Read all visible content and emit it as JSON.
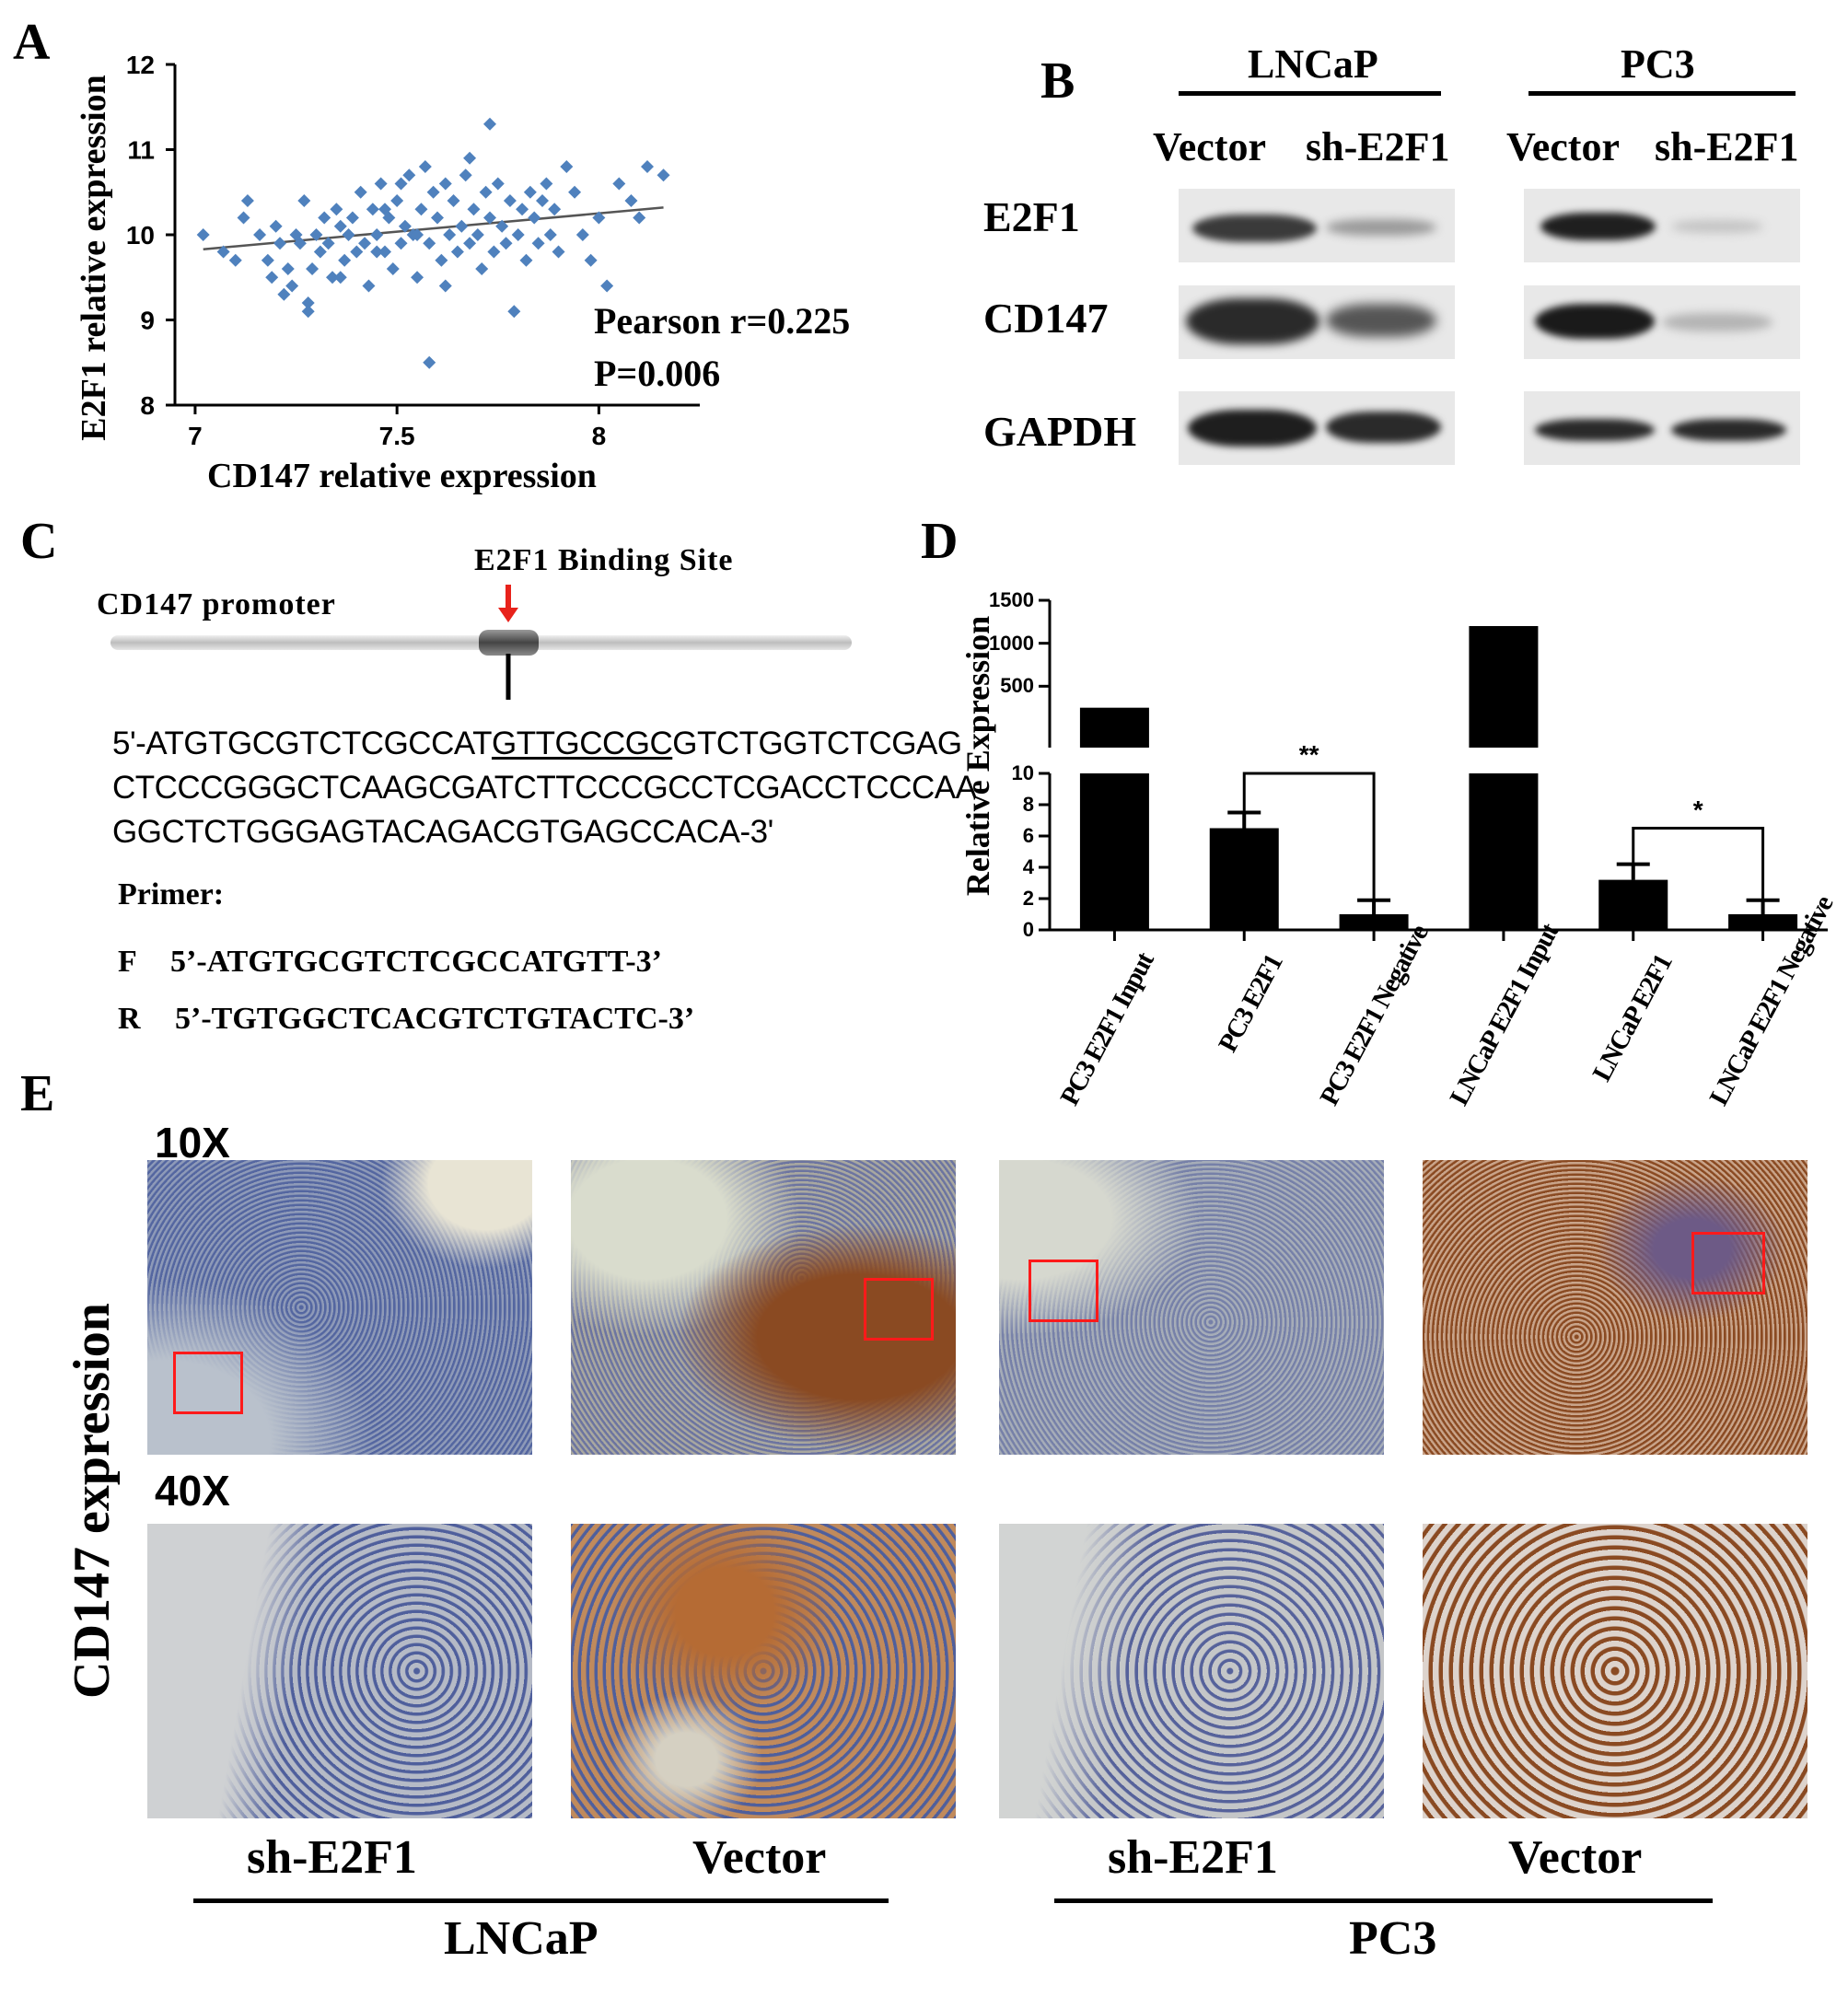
{
  "panels": {
    "A": "A",
    "B": "B",
    "C": "C",
    "D": "D",
    "E": "E"
  },
  "panel_a": {
    "ylabel": "E2F1 relative expression",
    "xlabel": "CD147 relative expression",
    "stat_r": "Pearson r=0.225",
    "stat_p": "P=0.006",
    "xticks": [
      "7",
      "7.5",
      "8"
    ],
    "yticks": [
      "8",
      "9",
      "10",
      "11",
      "12"
    ]
  },
  "panel_b": {
    "groups": [
      "LNCaP",
      "PC3"
    ],
    "columns": [
      "Vector",
      "sh-E2F1",
      "Vector",
      "sh-E2F1"
    ],
    "rows": [
      "E2F1",
      "CD147",
      "GAPDH"
    ]
  },
  "panel_c": {
    "promoter_label": "CD147 promoter",
    "binding_label": "E2F1 Binding Site",
    "seq_line1_a": "5'-ATGTGCGTCTCGCCAT",
    "seq_line1_b": "GTTGCCGC",
    "seq_line1_c": "GTCTGGTCTCGAG",
    "seq_line2": "CTCCCGGGCTCAAGCGATCTTCCCGCCTCGACCTCCCAA",
    "seq_line3": "GGCTCTGGGAGTACAGACGTGAGCCACA-3'",
    "primer_title": "Primer:",
    "primer_f_tag": "F",
    "primer_f_seq": "5’-ATGTGCGTCTCGCCATGTT-3’",
    "primer_r_tag": "R",
    "primer_r_seq": "5’-TGTGGCTCACGTCTGTACTC-3’"
  },
  "panel_d": {
    "ylabel": "Relative Expression",
    "yticks_upper": [
      "500",
      "1000",
      "1500"
    ],
    "yticks_lower": [
      "0",
      "2",
      "4",
      "6",
      "8",
      "10"
    ],
    "sig_1": "**",
    "sig_2": "*"
  },
  "panel_e": {
    "ylabel": "CD147 expression",
    "mag_low": "10X",
    "mag_high": "40X",
    "columns": [
      "sh-E2F1",
      "Vector",
      "sh-E2F1",
      "Vector"
    ],
    "groups": [
      "LNCaP",
      "PC3"
    ]
  },
  "colors": {
    "scatter_point": "#4f81bd",
    "bar": "#000000",
    "roi_box": "#ff1a1a",
    "binding_arrow": "#e8221b",
    "stain_brown": "#8a4a22",
    "stain_blue": "#5468a0"
  },
  "chart_data": [
    {
      "type": "scatter",
      "title": "",
      "xlabel": "CD147 relative expression",
      "ylabel": "E2F1 relative expression",
      "xlim": [
        6.95,
        8.25
      ],
      "ylim": [
        8,
        12
      ],
      "annotations": [
        "Pearson r=0.225",
        "P=0.006"
      ],
      "trendline": [
        [
          7.02,
          9.83
        ],
        [
          8.16,
          10.32
        ]
      ],
      "points": [
        [
          7.02,
          10.0
        ],
        [
          7.07,
          9.8
        ],
        [
          7.1,
          9.7
        ],
        [
          7.12,
          10.2
        ],
        [
          7.13,
          10.4
        ],
        [
          7.16,
          10.0
        ],
        [
          7.18,
          9.7
        ],
        [
          7.19,
          9.5
        ],
        [
          7.2,
          10.1
        ],
        [
          7.21,
          9.9
        ],
        [
          7.22,
          9.3
        ],
        [
          7.23,
          9.6
        ],
        [
          7.24,
          9.4
        ],
        [
          7.25,
          10.0
        ],
        [
          7.26,
          9.9
        ],
        [
          7.27,
          10.4
        ],
        [
          7.28,
          9.2
        ],
        [
          7.29,
          9.6
        ],
        [
          7.3,
          10.0
        ],
        [
          7.31,
          9.8
        ],
        [
          7.32,
          10.2
        ],
        [
          7.33,
          9.9
        ],
        [
          7.34,
          9.5
        ],
        [
          7.35,
          10.3
        ],
        [
          7.36,
          10.1
        ],
        [
          7.37,
          9.7
        ],
        [
          7.38,
          10.0
        ],
        [
          7.39,
          10.2
        ],
        [
          7.4,
          9.8
        ],
        [
          7.41,
          10.5
        ],
        [
          7.42,
          9.9
        ],
        [
          7.43,
          9.4
        ],
        [
          7.44,
          10.3
        ],
        [
          7.45,
          10.0
        ],
        [
          7.46,
          10.6
        ],
        [
          7.47,
          9.8
        ],
        [
          7.48,
          10.2
        ],
        [
          7.49,
          9.6
        ],
        [
          7.5,
          10.4
        ],
        [
          7.51,
          9.9
        ],
        [
          7.52,
          10.1
        ],
        [
          7.53,
          10.7
        ],
        [
          7.54,
          10.0
        ],
        [
          7.55,
          9.5
        ],
        [
          7.56,
          10.3
        ],
        [
          7.57,
          10.8
        ],
        [
          7.58,
          9.9
        ],
        [
          7.59,
          10.5
        ],
        [
          7.6,
          10.2
        ],
        [
          7.61,
          9.7
        ],
        [
          7.62,
          10.6
        ],
        [
          7.63,
          10.0
        ],
        [
          7.64,
          10.4
        ],
        [
          7.65,
          9.8
        ],
        [
          7.66,
          10.1
        ],
        [
          7.67,
          10.7
        ],
        [
          7.68,
          9.9
        ],
        [
          7.69,
          10.3
        ],
        [
          7.7,
          10.0
        ],
        [
          7.71,
          9.6
        ],
        [
          7.72,
          10.5
        ],
        [
          7.73,
          10.2
        ],
        [
          7.74,
          9.8
        ],
        [
          7.75,
          10.6
        ],
        [
          7.76,
          10.1
        ],
        [
          7.77,
          9.9
        ],
        [
          7.78,
          10.4
        ],
        [
          7.79,
          9.1
        ],
        [
          7.8,
          10.0
        ],
        [
          7.81,
          10.3
        ],
        [
          7.82,
          9.7
        ],
        [
          7.83,
          10.5
        ],
        [
          7.84,
          10.2
        ],
        [
          7.85,
          9.9
        ],
        [
          7.86,
          10.4
        ],
        [
          7.87,
          10.6
        ],
        [
          7.88,
          10.0
        ],
        [
          7.89,
          10.3
        ],
        [
          7.9,
          9.8
        ],
        [
          7.92,
          10.8
        ],
        [
          7.94,
          10.5
        ],
        [
          7.96,
          10.0
        ],
        [
          7.98,
          9.7
        ],
        [
          8.0,
          10.2
        ],
        [
          8.02,
          9.4
        ],
        [
          8.05,
          10.6
        ],
        [
          8.08,
          10.4
        ],
        [
          8.1,
          10.2
        ],
        [
          8.12,
          10.8
        ],
        [
          8.16,
          10.7
        ],
        [
          7.28,
          9.1
        ],
        [
          7.58,
          8.5
        ],
        [
          7.73,
          11.3
        ],
        [
          7.45,
          9.8
        ],
        [
          7.62,
          9.4
        ],
        [
          7.36,
          9.5
        ],
        [
          7.51,
          10.6
        ],
        [
          7.68,
          10.9
        ],
        [
          7.55,
          10.0
        ],
        [
          7.47,
          10.3
        ]
      ]
    },
    {
      "type": "bar",
      "title": "",
      "xlabel": "",
      "ylabel": "Relative Expression",
      "axis_break": {
        "lower": [
          0,
          10
        ],
        "upper": [
          500,
          1500
        ]
      },
      "categories": [
        "PC3 E2F1 Input",
        "PC3 E2F1",
        "PC3 E2F1 Negative",
        "LNCaP E2F1 Input",
        "LNCaP E2F1",
        "LNCaP E2F1 Negative"
      ],
      "values": [
        250,
        6.5,
        1.0,
        1200,
        3.2,
        1.0
      ],
      "errors": [
        0,
        1.0,
        0.9,
        0,
        1.0,
        0.9
      ],
      "significance": [
        {
          "between": [
            1,
            2
          ],
          "label": "**"
        },
        {
          "between": [
            4,
            5
          ],
          "label": "*"
        }
      ]
    }
  ]
}
